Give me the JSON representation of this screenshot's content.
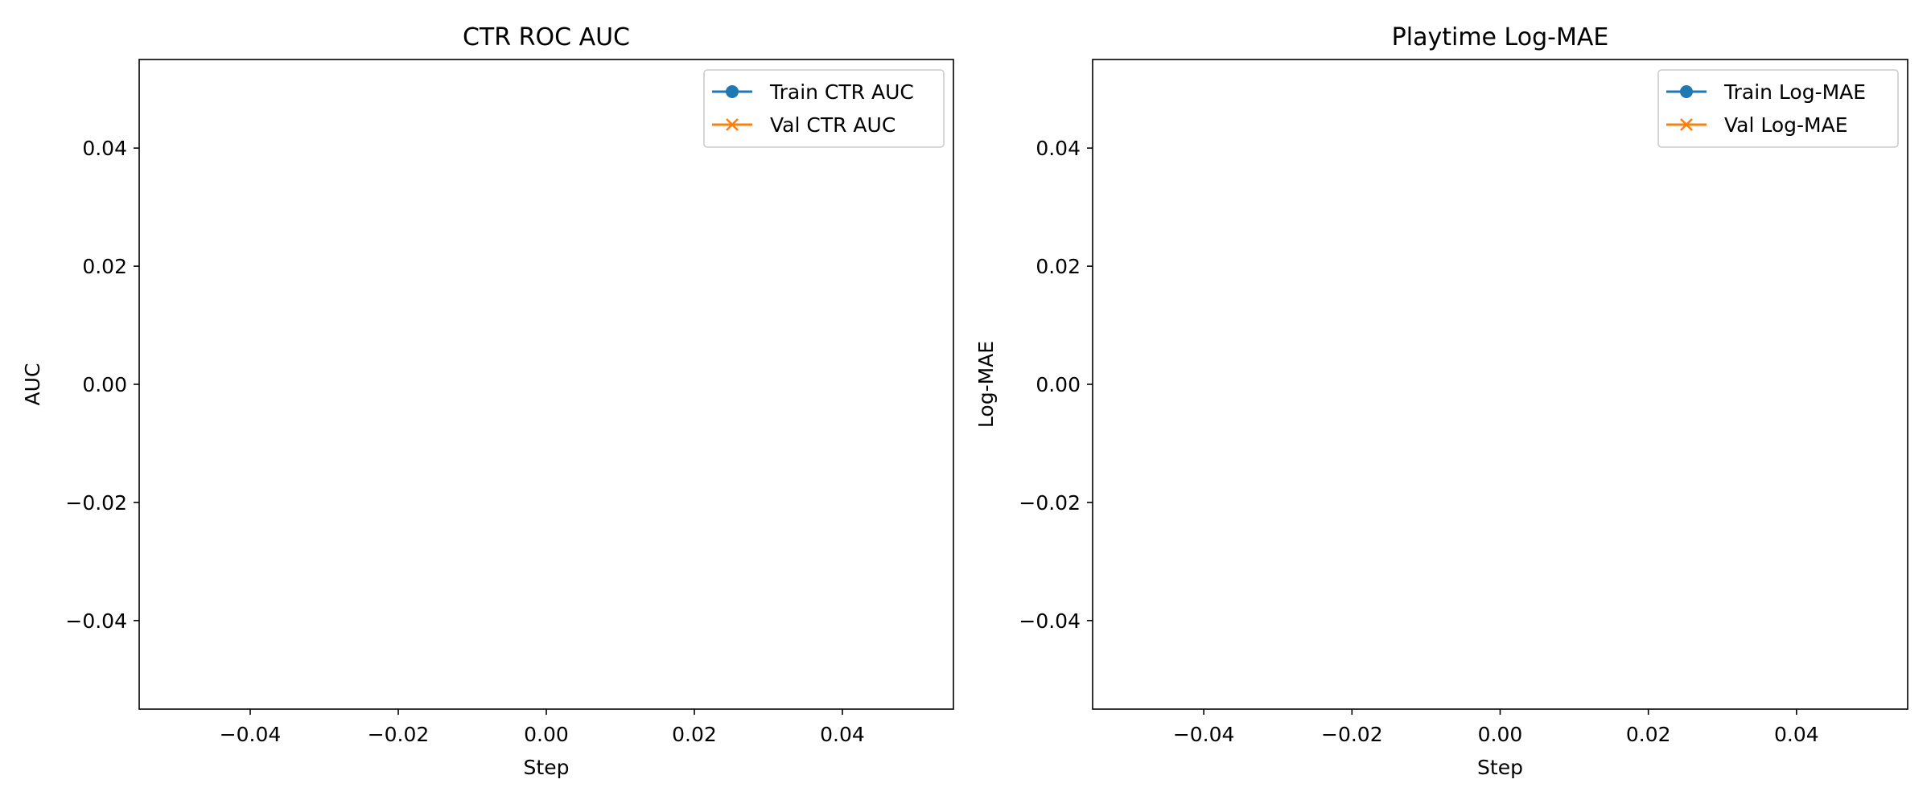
{
  "chart_data": [
    {
      "type": "line",
      "title": "CTR ROC AUC",
      "xlabel": "Step",
      "ylabel": "AUC",
      "xlim": [
        -0.055,
        0.055
      ],
      "ylim": [
        -0.055,
        0.055
      ],
      "xticks": [
        -0.04,
        -0.02,
        0.0,
        0.02,
        0.04
      ],
      "xtick_labels": [
        "−0.04",
        "−0.02",
        "0.00",
        "0.02",
        "0.04"
      ],
      "yticks": [
        -0.04,
        -0.02,
        0.0,
        0.02,
        0.04
      ],
      "ytick_labels": [
        "−0.04",
        "−0.02",
        "0.00",
        "0.02",
        "0.04"
      ],
      "grid": false,
      "legend_position": "upper right",
      "series": [
        {
          "name": "Train CTR AUC",
          "color": "#1f77b4",
          "marker": "circle",
          "x": [],
          "y": []
        },
        {
          "name": "Val CTR AUC",
          "color": "#ff7f0e",
          "marker": "x",
          "x": [],
          "y": []
        }
      ]
    },
    {
      "type": "line",
      "title": "Playtime Log-MAE",
      "xlabel": "Step",
      "ylabel": "Log-MAE",
      "xlim": [
        -0.055,
        0.055
      ],
      "ylim": [
        -0.055,
        0.055
      ],
      "xticks": [
        -0.04,
        -0.02,
        0.0,
        0.02,
        0.04
      ],
      "xtick_labels": [
        "−0.04",
        "−0.02",
        "0.00",
        "0.02",
        "0.04"
      ],
      "yticks": [
        -0.04,
        -0.02,
        0.0,
        0.02,
        0.04
      ],
      "ytick_labels": [
        "−0.04",
        "−0.02",
        "0.00",
        "0.02",
        "0.04"
      ],
      "grid": false,
      "legend_position": "upper right",
      "series": [
        {
          "name": "Train Log-MAE",
          "color": "#1f77b4",
          "marker": "circle",
          "x": [],
          "y": []
        },
        {
          "name": "Val Log-MAE",
          "color": "#ff7f0e",
          "marker": "x",
          "x": [],
          "y": []
        }
      ]
    }
  ]
}
